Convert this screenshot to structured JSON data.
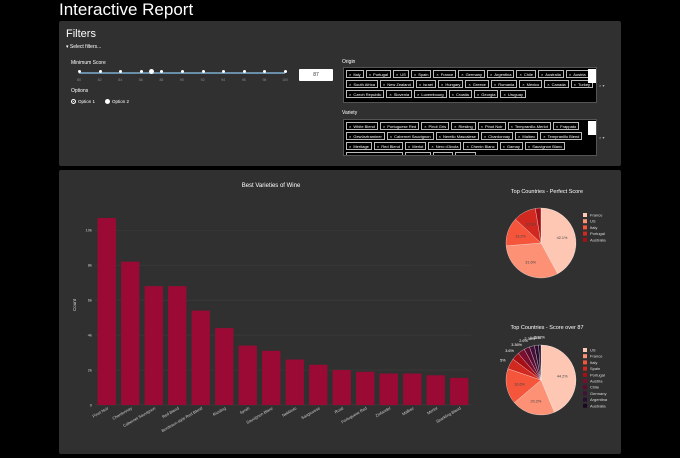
{
  "page": {
    "title": "Interactive Report"
  },
  "filters": {
    "title": "Filters",
    "select_label": "▾ Select filters...",
    "min_score_label": "Minimum Score",
    "slider_ticks": [
      "80",
      "82",
      "84",
      "86",
      "88",
      "90",
      "92",
      "94",
      "96",
      "98",
      "100"
    ],
    "slider_value": 87,
    "score_input_value": "87",
    "options_label": "Options",
    "option1": "Option 1",
    "option2": "Option 2",
    "selected_option": "Option 1",
    "origin_label": "Origin",
    "origin_chips": [
      "Italy",
      "Portugal",
      "US",
      "Spain",
      "France",
      "Germany",
      "Argentina",
      "Chile",
      "Australia",
      "Austria",
      "South Africa",
      "New Zealand",
      "Israel",
      "Hungary",
      "Greece",
      "Romania",
      "Mexico",
      "Canada",
      "Turkey",
      "Czech Republic",
      "Slovenia",
      "Luxembourg",
      "Croatia",
      "Georgia",
      "Uruguay"
    ],
    "variety_label": "Variety",
    "variety_chips": [
      "White Blend",
      "Portuguese Red",
      "Pinot Gris",
      "Riesling",
      "Pinot Noir",
      "Tempranillo-Merlot",
      "Frappato",
      "Gewürztraminer",
      "Cabernet Sauvignon",
      "Nerello Mascalese",
      "Chardonnay",
      "Malbec",
      "Tempranillo Blend",
      "Meritage",
      "Red Blend",
      "Merlot",
      "Nero d'Avola",
      "Chenin Blanc",
      "Gamay",
      "Sauvignon Blanc",
      "Bordeaux-style Red Blend",
      "Aglianico",
      "Rosé",
      "Syrah"
    ],
    "clear_icon": "close-icon",
    "dropdown_icon": "chevron-down-icon"
  },
  "bar_chart": {
    "title": "Best Varieties of Wine",
    "ylabel": "Count"
  },
  "pie_perfect": {
    "title": "Top Countries - Perfect Score"
  },
  "pie_over87": {
    "title": "Top Countries - Score over 87"
  },
  "chart_data": [
    {
      "type": "bar",
      "title": "Best Varieties of Wine",
      "xlabel": "",
      "ylabel": "Count",
      "categories": [
        "Pinot Noir",
        "Chardonnay",
        "Cabernet Sauvignon",
        "Red Blend",
        "Bordeaux-style Red Blend",
        "Riesling",
        "Syrah",
        "Sauvignon Blanc",
        "Nebbiolo",
        "Sangiovese",
        "Rosé",
        "Portuguese Red",
        "Zinfandel",
        "Malbec",
        "Merlot",
        "Sparkling Blend"
      ],
      "values": [
        10700,
        8200,
        6800,
        6800,
        5400,
        4400,
        3400,
        3100,
        2600,
        2300,
        2000,
        1900,
        1800,
        1800,
        1700,
        1550
      ],
      "yticks": [
        "0",
        "2k",
        "4k",
        "6k",
        "8k",
        "10k"
      ],
      "ylim": [
        0,
        11500
      ],
      "color": "#9b0a35",
      "grid": true
    },
    {
      "type": "pie",
      "title": "Top Countries - Perfect Score",
      "labels": [
        "France",
        "US",
        "Italy",
        "Portugal",
        "Australia"
      ],
      "values": [
        42.1,
        31.6,
        13.2,
        10.5,
        2.6
      ],
      "slice_labels": [
        "42.1%",
        "31.6%",
        "13.2%",
        "10.5%",
        ""
      ],
      "colors": [
        "#fdc7b4",
        "#fc9176",
        "#f5553b",
        "#d1291f",
        "#a50f15"
      ],
      "legend": "right"
    },
    {
      "type": "pie",
      "title": "Top Countries - Score over 87",
      "labels": [
        "US",
        "France",
        "Italy",
        "Spain",
        "Portugal",
        "Austria",
        "Chile",
        "Germany",
        "Argentina",
        "Australia"
      ],
      "values": [
        44.2,
        20.2,
        16.6,
        5.0,
        3.6,
        3.36,
        2.6,
        2.36,
        1.93,
        1.12
      ],
      "slice_labels": [
        "44.2%",
        "20.2%",
        "16.6%",
        "5%",
        "3.6%",
        "3.36%",
        "2.6%",
        "2.36%",
        "1.93%",
        "1.12%"
      ],
      "colors": [
        "#fdc7b4",
        "#fc9176",
        "#f5553b",
        "#d1291f",
        "#a50f15",
        "#7a0e2e",
        "#5b0c2e",
        "#421138",
        "#2a0c2e",
        "#1a0821"
      ],
      "legend": "right"
    }
  ]
}
